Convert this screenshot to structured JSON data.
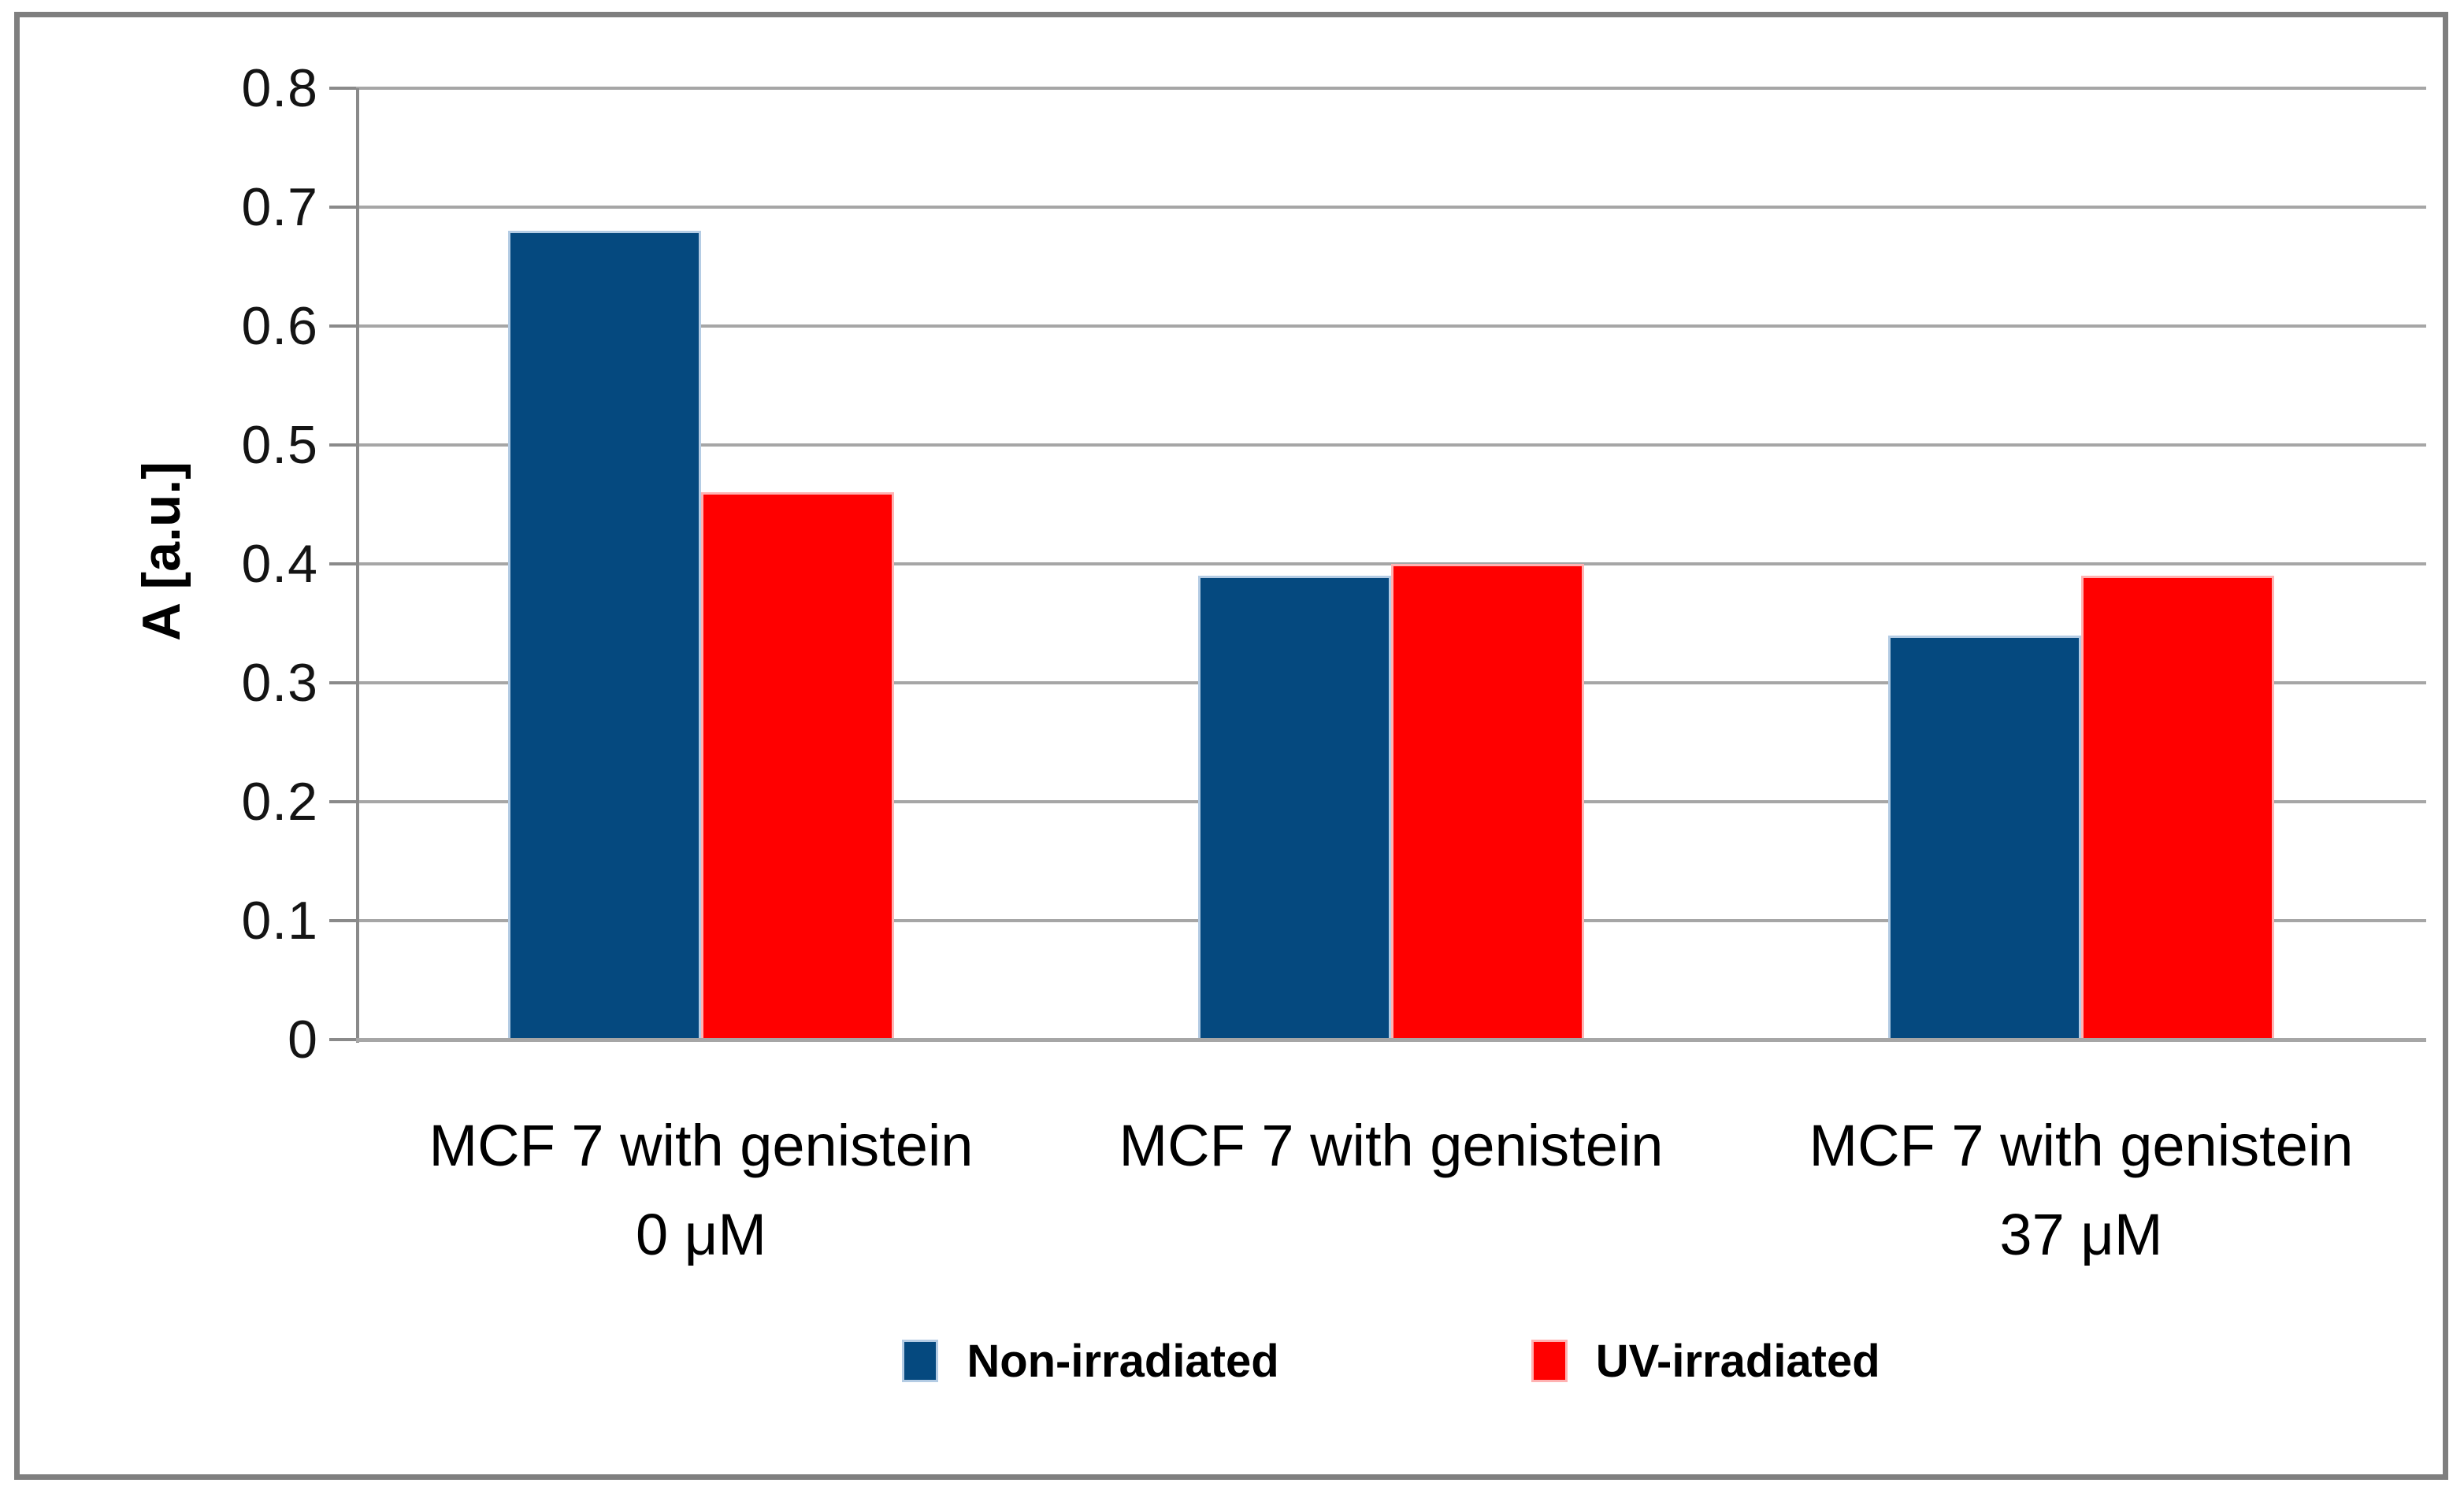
{
  "chart_data": {
    "type": "bar",
    "title": "",
    "categories": [
      [
        "MCF 7 with genistein",
        "0 μM"
      ],
      [
        "MCF 7 with genistein"
      ],
      [
        "MCF 7 with genistein",
        "37 μM"
      ]
    ],
    "series": [
      {
        "name": "Non-irradiated",
        "color": "#05497F",
        "border_color": "#B4CCE4",
        "values": [
          0.68,
          0.39,
          0.34
        ]
      },
      {
        "name": "UV-irradiated",
        "color": "#FF0000",
        "border_color": "#FFB2B2",
        "values": [
          0.46,
          0.4,
          0.39
        ]
      }
    ],
    "xlabel": "",
    "ylabel": "A [a.u.]",
    "ylim": [
      0,
      0.8
    ],
    "ytick_step": 0.1,
    "ytick_labels": [
      "0",
      "0.1",
      "0.2",
      "0.3",
      "0.4",
      "0.5",
      "0.6",
      "0.7",
      "0.8"
    ],
    "grid": true,
    "legend_position": "bottom"
  },
  "style_colors": {
    "gridline": "#A6A6A6",
    "zero_line": "#A6A6A6",
    "axis": "#8A8A8A",
    "frame_border": "#7F7F7F",
    "text": "#000000",
    "background": "#FFFFFF"
  }
}
